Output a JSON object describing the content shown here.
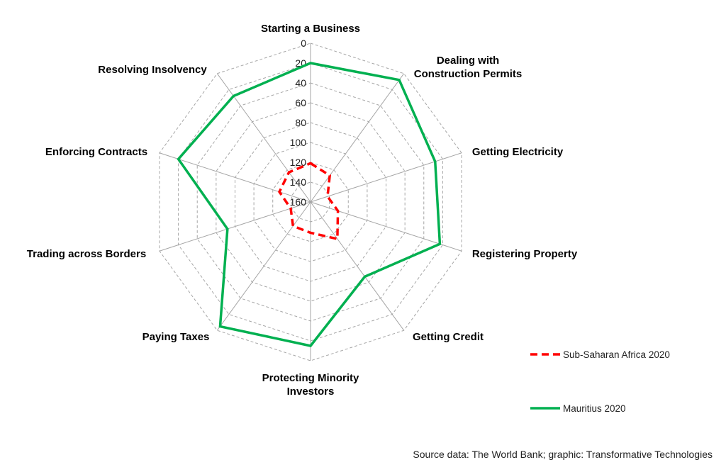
{
  "chart_data": {
    "type": "radar",
    "categories": [
      "Starting a Business",
      "Dealing with Construction Permits",
      "Getting Electricity",
      "Registering Property",
      "Getting Credit",
      "Protecting Minority Investors",
      "Paying Taxes",
      "Trading across Borders",
      "Enforcing Contracts",
      "Resolving Insolvency"
    ],
    "category_lines": [
      [
        "Starting a Business"
      ],
      [
        "Dealing with",
        "Construction Permits"
      ],
      [
        "Getting Electricity"
      ],
      [
        "Registering Property"
      ],
      [
        "Getting Credit"
      ],
      [
        "Protecting Minority",
        "Investors"
      ],
      [
        "Paying Taxes"
      ],
      [
        "Trading across Borders"
      ],
      [
        "Enforcing Contracts"
      ],
      [
        "Resolving Insolvency"
      ]
    ],
    "radial_ticks": [
      0,
      20,
      40,
      60,
      80,
      100,
      120,
      140,
      160
    ],
    "radial_range": [
      0,
      160
    ],
    "radial_reversed": true,
    "grid": true,
    "legend_position": "right",
    "series": [
      {
        "name": "Sub-Saharan Africa 2020",
        "color": "#ff0000",
        "style": "dashed",
        "values": [
          121,
          127,
          142,
          131,
          114,
          129,
          130,
          139,
          127,
          123
        ]
      },
      {
        "name": "Mauritius 2020",
        "color": "#00b050",
        "style": "solid",
        "values": [
          20,
          8,
          28,
          23,
          67,
          15,
          5,
          72,
          20,
          28
        ]
      }
    ]
  },
  "source": "Source data: The World Bank; graphic: Transformative Technologies"
}
